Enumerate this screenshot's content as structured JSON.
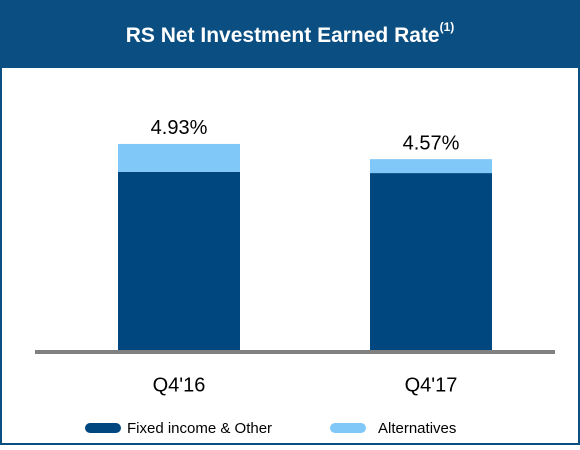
{
  "chart_data": {
    "type": "stacked_bar",
    "title": "RS Net Investment Earned Rate",
    "title_note": "(1)",
    "categories": [
      "Q4'16",
      "Q4'17"
    ],
    "series": [
      {
        "name": "Fixed income & Other",
        "color": "#00477f",
        "values": [
          4.27,
          4.24
        ]
      },
      {
        "name": "Alternatives",
        "color": "#7fc8f8",
        "values": [
          0.66,
          0.33
        ]
      }
    ],
    "totals": [
      4.93,
      4.57
    ],
    "total_labels": [
      "4.93%",
      "4.57%"
    ]
  }
}
